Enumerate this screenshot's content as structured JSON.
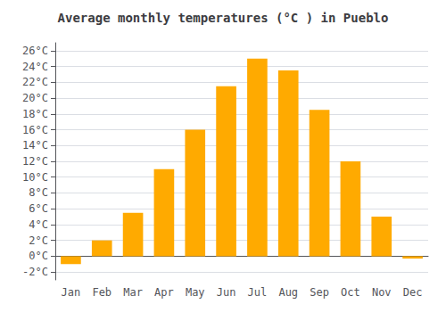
{
  "chart_data": {
    "type": "bar",
    "title": "Average monthly temperatures (°C ) in Pueblo",
    "categories": [
      "Jan",
      "Feb",
      "Mar",
      "Apr",
      "May",
      "Jun",
      "Jul",
      "Aug",
      "Sep",
      "Oct",
      "Nov",
      "Dec"
    ],
    "values": [
      -1.0,
      2.0,
      5.5,
      11.0,
      16.0,
      21.5,
      25.0,
      23.5,
      18.5,
      12.0,
      5.0,
      -0.3
    ],
    "color": "#FFAA00",
    "ylim": [
      -3,
      27
    ],
    "yticks": [
      {
        "value": -2,
        "label": "-2°C"
      },
      {
        "value": 0,
        "label": "0°C"
      },
      {
        "value": 2,
        "label": "2°C"
      },
      {
        "value": 4,
        "label": "4°C"
      },
      {
        "value": 6,
        "label": "6°C"
      },
      {
        "value": 8,
        "label": "8°C"
      },
      {
        "value": 10,
        "label": "10°C"
      },
      {
        "value": 12,
        "label": "12°C"
      },
      {
        "value": 14,
        "label": "14°C"
      },
      {
        "value": 16,
        "label": "16°C"
      },
      {
        "value": 18,
        "label": "18°C"
      },
      {
        "value": 20,
        "label": "20°C"
      },
      {
        "value": 22,
        "label": "22°C"
      },
      {
        "value": 24,
        "label": "24°C"
      },
      {
        "value": 26,
        "label": "26°C"
      }
    ],
    "grid": true
  }
}
